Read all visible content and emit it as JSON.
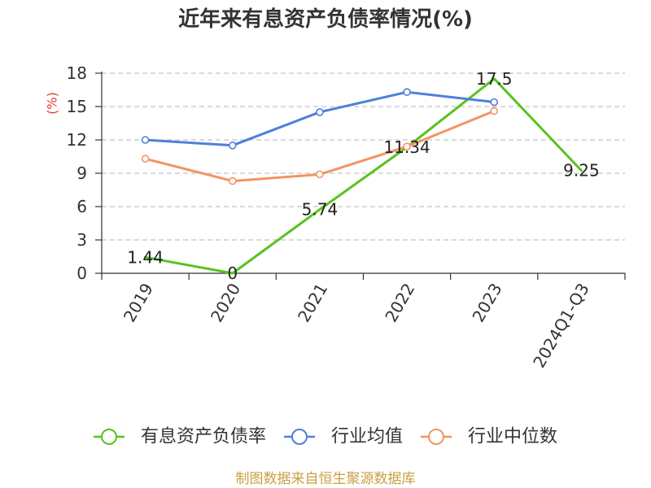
{
  "footer": {
    "source": "制图数据来自恒生聚源数据库"
  },
  "chart_data": {
    "type": "line",
    "title": "近年来有息资产负债率情况(%)",
    "ylabel": "(%)",
    "categories": [
      "2019",
      "2020",
      "2021",
      "2022",
      "2023",
      "2024Q1-Q3"
    ],
    "ylim": [
      0,
      18
    ],
    "yticks": [
      0,
      3,
      6,
      9,
      12,
      15,
      18
    ],
    "grid": true,
    "legend": "bottom",
    "series": [
      {
        "name": "有息资产负债率",
        "color": "#58c21e",
        "data_labels": true,
        "values": [
          1.44,
          0,
          5.74,
          11.34,
          17.5,
          9.25
        ]
      },
      {
        "name": "行业均值",
        "color": "#4f7fdc",
        "values": [
          12.0,
          11.5,
          14.5,
          16.3,
          15.4,
          null
        ]
      },
      {
        "name": "行业中位数",
        "color": "#f39461",
        "values": [
          10.3,
          8.3,
          8.9,
          11.4,
          14.6,
          null
        ]
      }
    ]
  }
}
